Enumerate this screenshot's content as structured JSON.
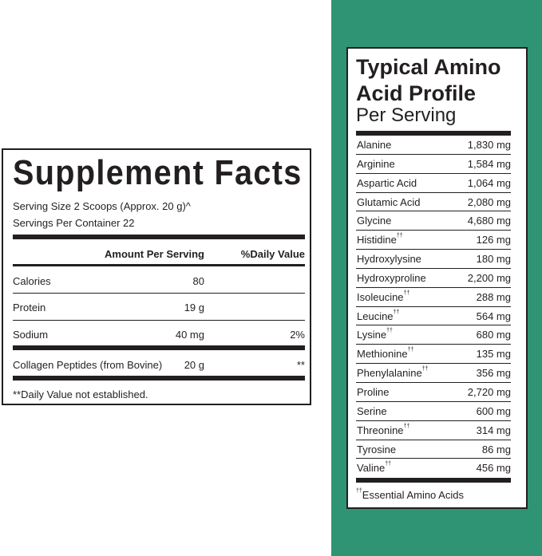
{
  "colors": {
    "background_panel": "#2e9474",
    "ink": "#231f20"
  },
  "supplement_facts": {
    "title": "Supplement Facts",
    "serving_size": "Serving Size 2 Scoops (Approx. 20 g)^",
    "servings_per_container": "Servings Per Container 22",
    "header": {
      "amount": "Amount Per Serving",
      "daily_value": "%Daily Value"
    },
    "rows": [
      {
        "name": "Calories",
        "amount": "80",
        "dv": ""
      },
      {
        "name": "Protein",
        "amount": "19 g",
        "dv": ""
      },
      {
        "name": "Sodium",
        "amount": "40 mg",
        "dv": "2%"
      },
      {
        "name": "Collagen Peptides (from Bovine)",
        "amount": "20 g",
        "dv": "**"
      }
    ],
    "footnote": "**Daily Value not established."
  },
  "amino_profile": {
    "title_line1": "Typical Amino",
    "title_line2": "Acid Profile",
    "subtitle": "Per Serving",
    "essential_mark": "††",
    "rows": [
      {
        "name": "Alanine",
        "value": "1,830 mg",
        "essential": false
      },
      {
        "name": "Arginine",
        "value": "1,584 mg",
        "essential": false
      },
      {
        "name": "Aspartic Acid",
        "value": "1,064 mg",
        "essential": false
      },
      {
        "name": "Glutamic Acid",
        "value": "2,080 mg",
        "essential": false
      },
      {
        "name": "Glycine",
        "value": "4,680 mg",
        "essential": false
      },
      {
        "name": "Histidine",
        "value": "126 mg",
        "essential": true
      },
      {
        "name": "Hydroxylysine",
        "value": "180 mg",
        "essential": false
      },
      {
        "name": "Hydroxyproline",
        "value": "2,200 mg",
        "essential": false
      },
      {
        "name": "Isoleucine",
        "value": "288 mg",
        "essential": true
      },
      {
        "name": "Leucine",
        "value": "564 mg",
        "essential": true
      },
      {
        "name": "Lysine",
        "value": "680 mg",
        "essential": true
      },
      {
        "name": "Methionine",
        "value": "135 mg",
        "essential": true
      },
      {
        "name": "Phenylalanine",
        "value": "356 mg",
        "essential": true
      },
      {
        "name": "Proline",
        "value": "2,720 mg",
        "essential": false
      },
      {
        "name": "Serine",
        "value": "600 mg",
        "essential": false
      },
      {
        "name": "Threonine",
        "value": "314 mg",
        "essential": true
      },
      {
        "name": "Tyrosine",
        "value": "86 mg",
        "essential": false
      },
      {
        "name": "Valine",
        "value": "456 mg",
        "essential": true
      }
    ],
    "footnote": "Essential Amino Acids"
  }
}
